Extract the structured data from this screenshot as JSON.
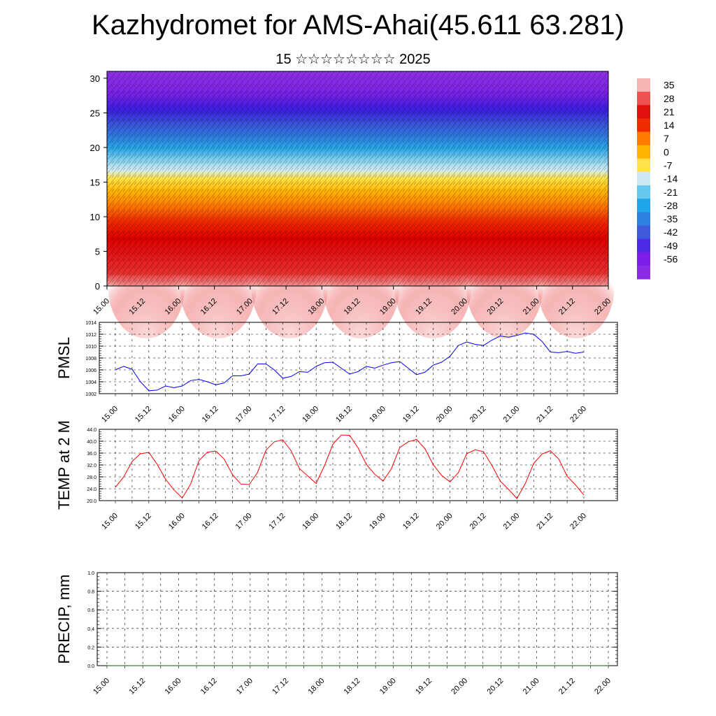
{
  "title": "Kazhydromet for AMS-Ahai(45.611 63.281)",
  "subtitle": "15 ☆☆☆☆☆☆☆☆ 2025",
  "colors": {
    "pmsl_line": "#0000ff",
    "temp_line": "#ff0000",
    "precip_line": "#006400",
    "grid": "#000000"
  },
  "chart_data": [
    {
      "id": "cross-section",
      "type": "heatmap",
      "x_ticks": [
        "15.00",
        "15.12",
        "16.00",
        "16.12",
        "17.00",
        "17.12",
        "18.00",
        "18.12",
        "19.00",
        "19.12",
        "20.00",
        "20.12",
        "21.00",
        "21.12",
        "22.00"
      ],
      "y_ticks": [
        "0",
        "5",
        "10",
        "15",
        "20",
        "25",
        "30"
      ],
      "ylim": [
        0,
        31
      ],
      "colorbar_labels": [
        "35",
        "28",
        "21",
        "14",
        "7",
        "0",
        "-7",
        "-14",
        "-21",
        "-28",
        "-35",
        "-42",
        "-49",
        "-56"
      ],
      "colorbar_colors": [
        "#f5b5b5",
        "#ef5050",
        "#e01010",
        "#f02b00",
        "#ff7a00",
        "#ffb500",
        "#ffe24a",
        "#cce8f0",
        "#66c8ee",
        "#1fa6e8",
        "#2d7fe0",
        "#3f5bdc",
        "#4f2ae6",
        "#7a1ee8",
        "#8a2ce6"
      ]
    },
    {
      "id": "pmsl",
      "type": "line",
      "ylabel": "PMSL",
      "ylim": [
        1002,
        1014
      ],
      "y_ticks": [
        "1002",
        "1004",
        "1006",
        "1008",
        "1010",
        "1012",
        "1014"
      ],
      "x_ticks": [
        "15.00",
        "15.12",
        "16.00",
        "16.12",
        "17.00",
        "17.12",
        "18.00",
        "18.12",
        "19.00",
        "19.12",
        "20.00",
        "20.12",
        "21.00",
        "21.12",
        "22.00"
      ],
      "series": [
        {
          "values": [
            1006.0,
            1006.6,
            1006.1,
            1004.0,
            1002.5,
            1002.6,
            1003.3,
            1003.0,
            1003.3,
            1004.2,
            1004.4,
            1004.0,
            1003.5,
            1003.8,
            1005.0,
            1005.0,
            1005.3,
            1007.0,
            1007.0,
            1006.0,
            1004.6,
            1004.9,
            1005.7,
            1005.6,
            1006.6,
            1007.2,
            1007.3,
            1006.3,
            1005.3,
            1005.7,
            1006.6,
            1006.3,
            1006.8,
            1007.2,
            1007.4,
            1006.3,
            1005.2,
            1005.6,
            1006.8,
            1007.3,
            1008.3,
            1010.1,
            1010.7,
            1010.3,
            1010.1,
            1011.0,
            1011.7,
            1011.5,
            1011.8,
            1012.2,
            1012.0,
            1010.8,
            1009.0,
            1008.9,
            1009.1,
            1008.8,
            1009.0
          ]
        }
      ]
    },
    {
      "id": "temp",
      "type": "line",
      "ylabel": "TEMP at 2 M",
      "ylim": [
        20,
        44
      ],
      "y_ticks": [
        "20.0",
        "24.0",
        "28.0",
        "32.0",
        "36.0",
        "40.0",
        "44.0"
      ],
      "x_ticks": [
        "15.00",
        "15.12",
        "16.00",
        "16.12",
        "17.00",
        "17.12",
        "18.00",
        "18.12",
        "19.00",
        "19.12",
        "20.00",
        "20.12",
        "21.00",
        "21.12",
        "22.00"
      ],
      "series": [
        {
          "values": [
            24.5,
            28.0,
            33.2,
            35.8,
            36.2,
            32.2,
            27.2,
            23.6,
            20.9,
            25.6,
            33.5,
            36.3,
            36.7,
            34.0,
            28.7,
            25.6,
            25.4,
            29.5,
            37.0,
            39.8,
            40.5,
            36.8,
            30.8,
            28.3,
            25.8,
            31.8,
            39.0,
            42.1,
            42.0,
            37.8,
            32.2,
            28.9,
            26.6,
            30.8,
            37.9,
            39.8,
            40.6,
            37.5,
            32.1,
            28.5,
            26.3,
            29.4,
            35.8,
            37.1,
            36.5,
            31.9,
            26.6,
            23.8,
            20.7,
            25.8,
            32.5,
            35.7,
            36.8,
            34.0,
            28.2,
            25.3,
            21.9
          ]
        }
      ]
    },
    {
      "id": "precip",
      "type": "line",
      "ylabel": "PRECIP, mm",
      "ylim": [
        0,
        1
      ],
      "y_ticks": [
        "0.0",
        "0.2",
        "0.4",
        "0.6",
        "0.8",
        "1.0"
      ],
      "x_ticks": [
        "15.00",
        "15.12",
        "16.00",
        "16.12",
        "17.00",
        "17.12",
        "18.00",
        "18.12",
        "19.00",
        "19.12",
        "20.00",
        "20.12",
        "21.00",
        "21.12",
        "22.00"
      ],
      "series": [
        {
          "values": [
            0,
            0,
            0,
            0,
            0,
            0,
            0,
            0,
            0,
            0,
            0,
            0,
            0,
            0,
            0,
            0,
            0,
            0,
            0,
            0,
            0,
            0,
            0,
            0,
            0,
            0,
            0,
            0,
            0,
            0,
            0,
            0,
            0,
            0,
            0,
            0,
            0,
            0,
            0,
            0,
            0,
            0,
            0,
            0,
            0,
            0,
            0,
            0,
            0,
            0,
            0,
            0,
            0,
            0,
            0,
            0,
            0
          ]
        }
      ]
    }
  ]
}
